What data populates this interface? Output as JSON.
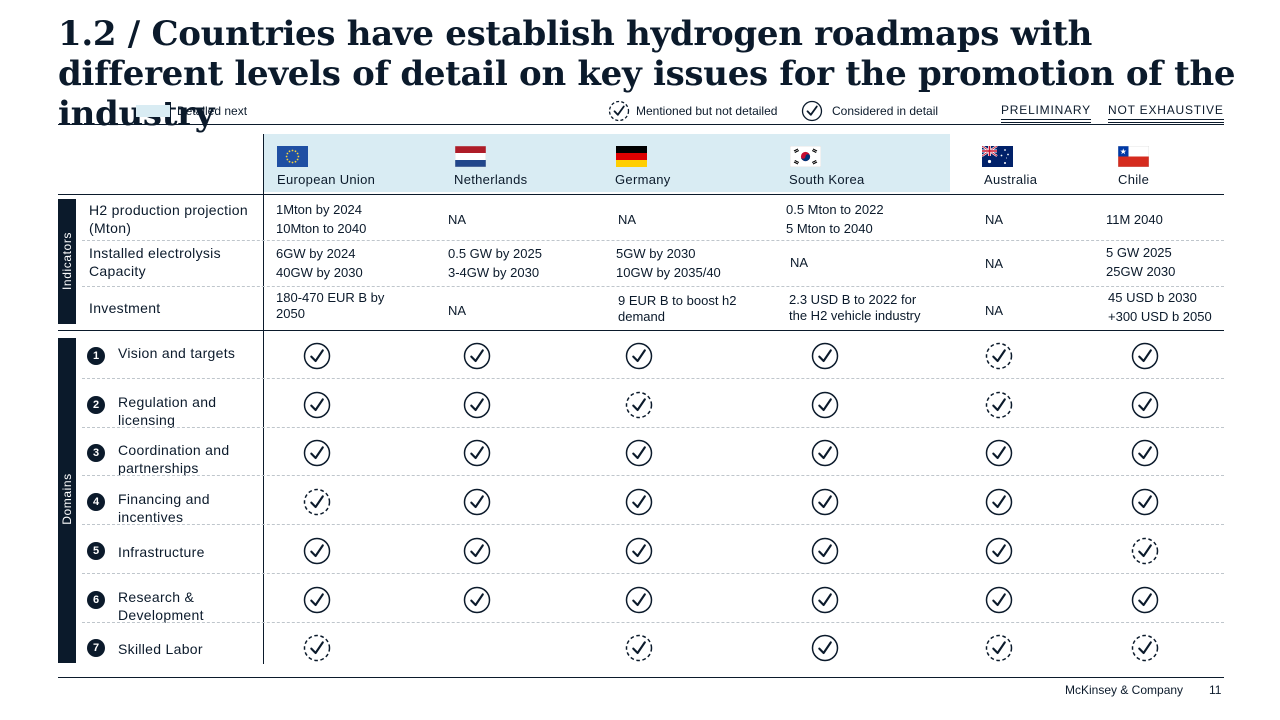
{
  "title": "1.2 / Countries have establish hydrogen roadmaps with different levels of detail on key issues for the promotion of the industry",
  "legend": {
    "detailed_next": "Detailed next",
    "mentioned": "Mentioned but not detailed",
    "considered": "Considered in detail",
    "highlight_color": "#d9ecf3"
  },
  "tags": {
    "preliminary": "PRELIMINARY",
    "not_exhaustive": "NOT EXHAUSTIVE"
  },
  "countries": [
    {
      "name": "European Union",
      "flag": "eu-flag-icon"
    },
    {
      "name": "Netherlands",
      "flag": "netherlands-flag-icon"
    },
    {
      "name": "Germany",
      "flag": "germany-flag-icon"
    },
    {
      "name": "South Korea",
      "flag": "south-korea-flag-icon"
    },
    {
      "name": "Australia",
      "flag": "australia-flag-icon"
    },
    {
      "name": "Chile",
      "flag": "chile-flag-icon"
    }
  ],
  "indicators_label": "Indicators",
  "indicators": [
    {
      "label": "H2 production projection (Mton)",
      "values": [
        [
          "1Mton by 2024",
          "10Mton to 2040"
        ],
        [
          "NA"
        ],
        [
          "NA"
        ],
        [
          "0.5 Mton to 2022",
          "5 Mton to 2040"
        ],
        [
          "NA"
        ],
        [
          "11M 2040"
        ]
      ]
    },
    {
      "label": "Installed electrolysis Capacity",
      "values": [
        [
          "6GW by 2024",
          "40GW by 2030"
        ],
        [
          "0.5 GW by 2025",
          "3-4GW by 2030"
        ],
        [
          "5GW by 2030",
          "10GW by 2035/40"
        ],
        [
          "NA"
        ],
        [
          "NA"
        ],
        [
          "5 GW 2025",
          "25GW 2030"
        ]
      ]
    },
    {
      "label": "Investment",
      "values": [
        [
          "180-470 EUR B by",
          "2050"
        ],
        [
          "NA"
        ],
        [
          "9 EUR B to boost h2",
          "demand"
        ],
        [
          "2.3 USD B to 2022 for",
          "the H2 vehicle industry"
        ],
        [
          "NA"
        ],
        [
          "45 USD b 2030",
          "+300 USD b 2050"
        ]
      ]
    }
  ],
  "domains_label": "Domains",
  "domains": [
    {
      "num": "1",
      "label": "Vision and targets",
      "status": [
        "detail",
        "detail",
        "detail",
        "detail",
        "mention",
        "detail"
      ]
    },
    {
      "num": "2",
      "label": "Regulation and licensing",
      "status": [
        "detail",
        "detail",
        "mention",
        "detail",
        "mention",
        "detail"
      ]
    },
    {
      "num": "3",
      "label": "Coordination and partnerships",
      "status": [
        "detail",
        "detail",
        "detail",
        "detail",
        "detail",
        "detail"
      ]
    },
    {
      "num": "4",
      "label": "Financing and incentives",
      "status": [
        "mention",
        "detail",
        "detail",
        "detail",
        "detail",
        "detail"
      ]
    },
    {
      "num": "5",
      "label": "Infrastructure",
      "status": [
        "detail",
        "detail",
        "detail",
        "detail",
        "detail",
        "mention"
      ]
    },
    {
      "num": "6",
      "label": "Research & Development",
      "status": [
        "detail",
        "detail",
        "detail",
        "detail",
        "detail",
        "detail"
      ]
    },
    {
      "num": "7",
      "label": "Skilled Labor",
      "status": [
        "mention",
        "",
        "mention",
        "detail",
        "mention",
        "mention"
      ]
    }
  ],
  "footer": {
    "company": "McKinsey & Company",
    "page": "11"
  },
  "colors": {
    "navy": "#0b1a2b",
    "dashed_divider": "#bfc6cc"
  }
}
